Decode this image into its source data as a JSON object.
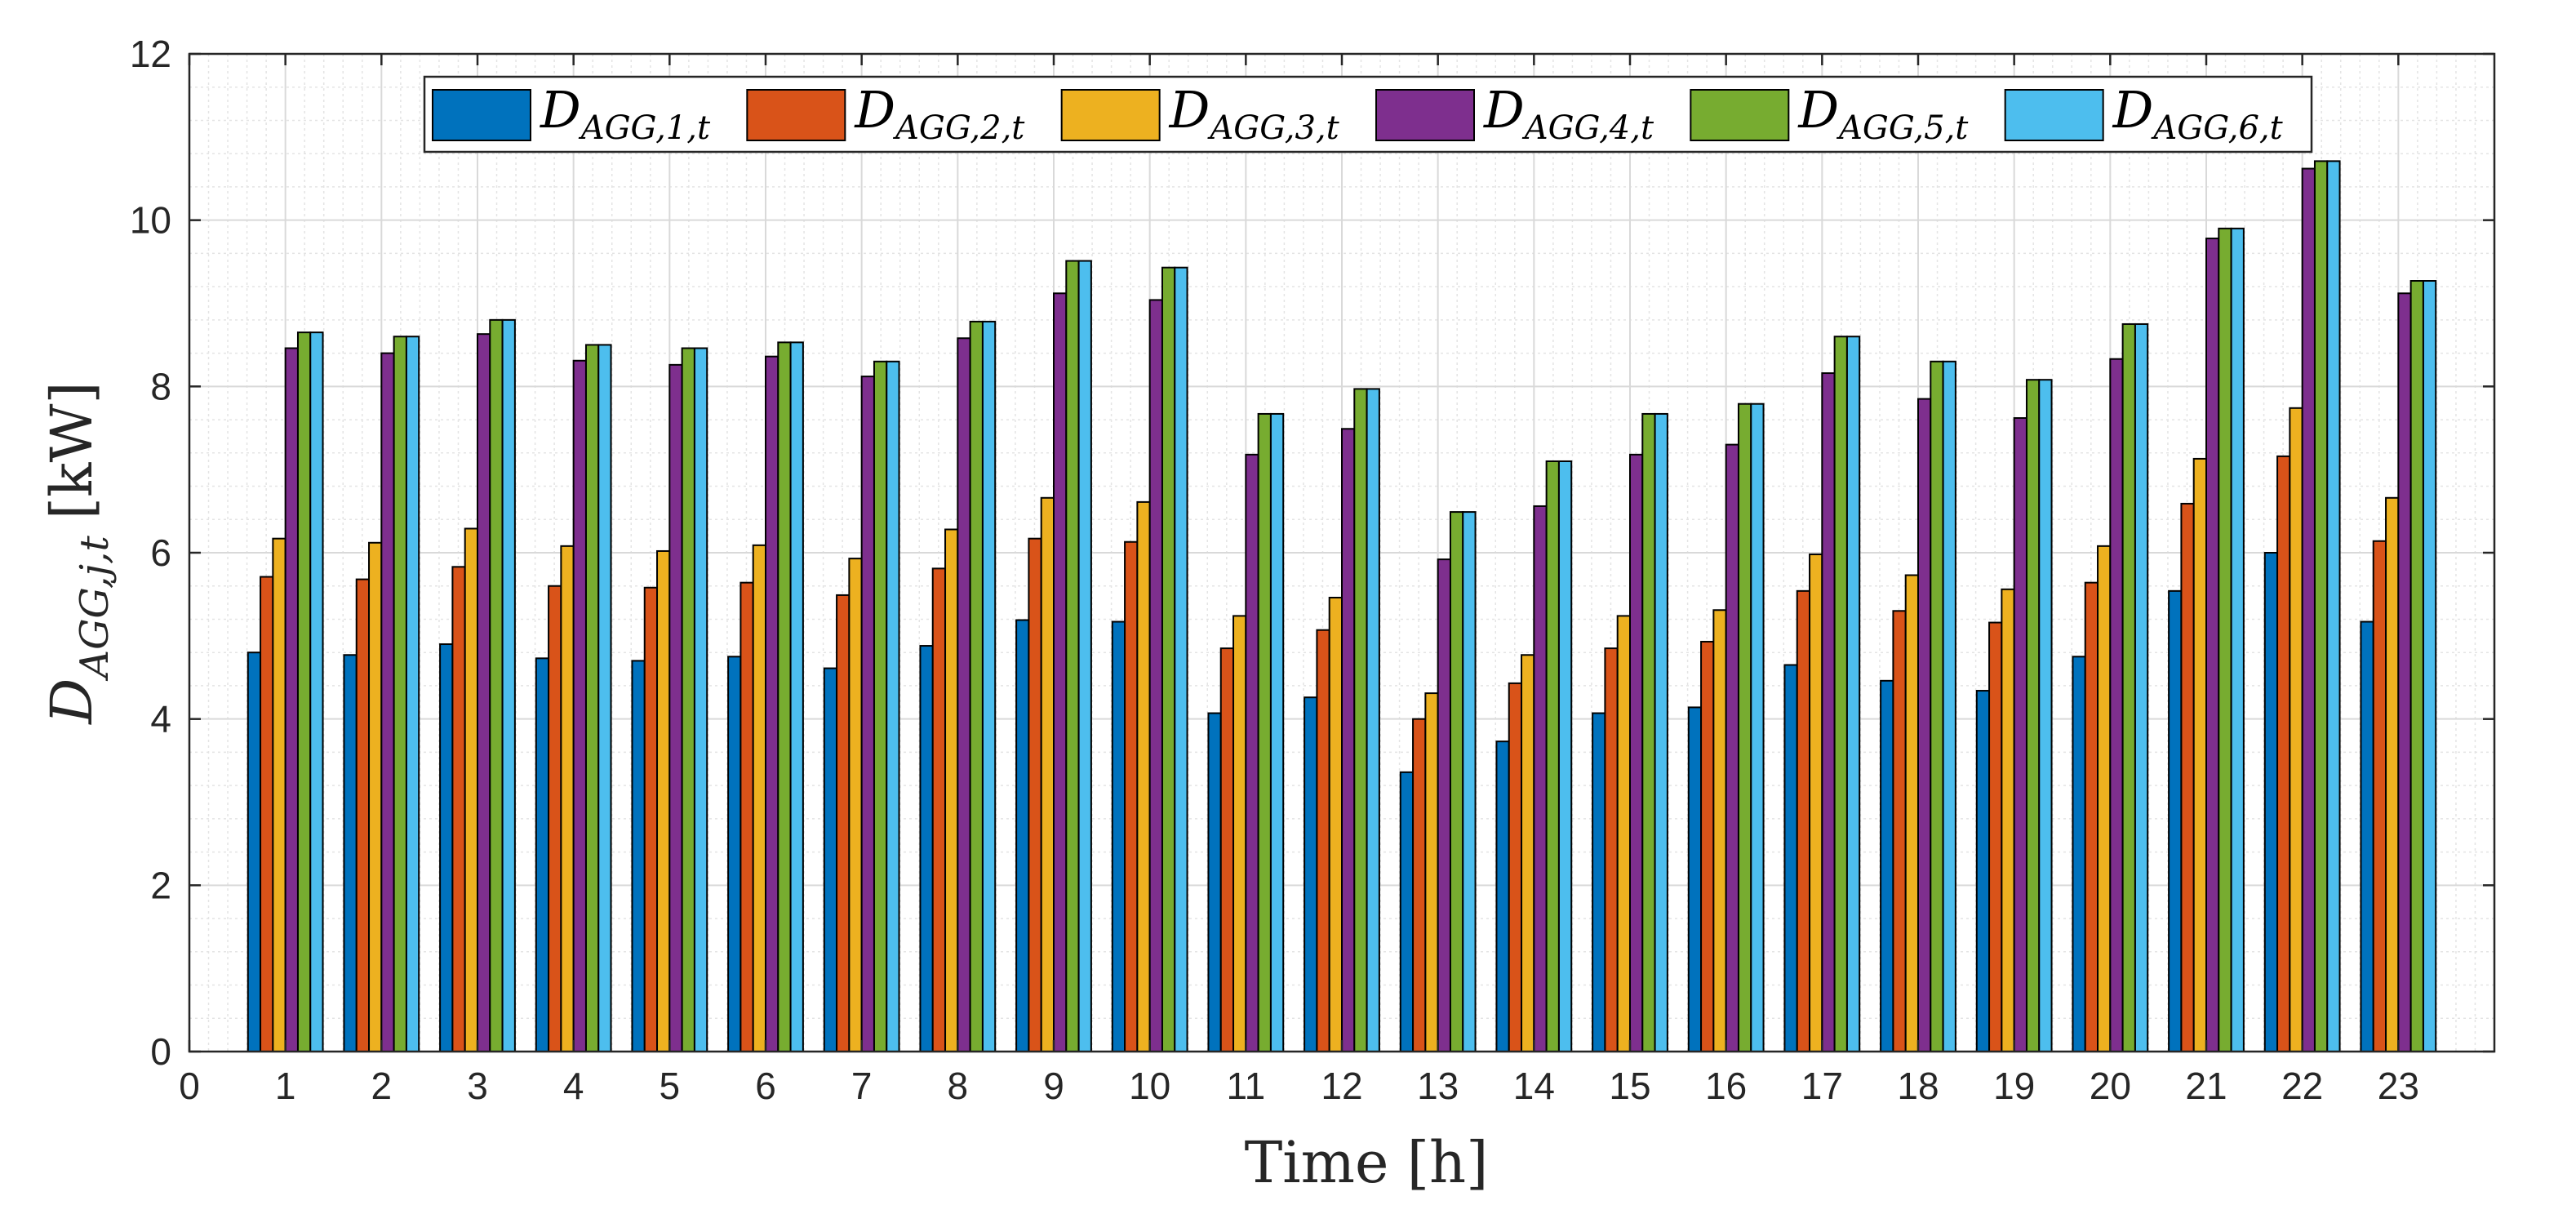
{
  "chart_data": {
    "type": "bar",
    "xlabel": "Time [h]",
    "ylabel": {
      "main": "D",
      "sub": "AGG,j,t",
      "unit": "[kW]"
    },
    "xlim": [
      0,
      24
    ],
    "ylim": [
      0,
      12
    ],
    "x_ticks": [
      0,
      1,
      2,
      3,
      4,
      5,
      6,
      7,
      8,
      9,
      10,
      11,
      12,
      13,
      14,
      15,
      16,
      17,
      18,
      19,
      20,
      21,
      22,
      23
    ],
    "y_ticks": [
      0,
      2,
      4,
      6,
      8,
      10,
      12
    ],
    "grid": true,
    "minor_grid": true,
    "legend_position": "top",
    "categories": [
      1,
      2,
      3,
      4,
      5,
      6,
      7,
      8,
      9,
      10,
      11,
      12,
      13,
      14,
      15,
      16,
      17,
      18,
      19,
      20,
      21,
      22,
      23
    ],
    "series": [
      {
        "name": "D_AGG,1,t",
        "base": "D",
        "sub": "AGG,1,t",
        "color": "#0072BD",
        "values": [
          4.8,
          4.77,
          4.9,
          4.73,
          4.7,
          4.75,
          4.61,
          4.88,
          5.19,
          5.17,
          4.07,
          4.26,
          3.36,
          3.73,
          4.07,
          4.14,
          4.65,
          4.46,
          4.34,
          4.75,
          5.54,
          6.0,
          5.17
        ]
      },
      {
        "name": "D_AGG,2,t",
        "base": "D",
        "sub": "AGG,2,t",
        "color": "#D95319",
        "values": [
          5.71,
          5.68,
          5.83,
          5.6,
          5.58,
          5.64,
          5.49,
          5.81,
          6.17,
          6.13,
          4.85,
          5.07,
          4.0,
          4.43,
          4.85,
          4.93,
          5.54,
          5.3,
          5.16,
          5.64,
          6.59,
          7.16,
          6.14
        ]
      },
      {
        "name": "D_AGG,3,t",
        "base": "D",
        "sub": "AGG,3,t",
        "color": "#EDB120",
        "values": [
          6.17,
          6.12,
          6.29,
          6.08,
          6.02,
          6.09,
          5.93,
          6.28,
          6.66,
          6.61,
          5.24,
          5.46,
          4.31,
          4.77,
          5.24,
          5.31,
          5.98,
          5.73,
          5.56,
          6.08,
          7.13,
          7.74,
          6.66
        ]
      },
      {
        "name": "D_AGG,4,t",
        "base": "D",
        "sub": "AGG,4,t",
        "color": "#7E2F8E",
        "values": [
          8.46,
          8.4,
          8.63,
          8.31,
          8.26,
          8.36,
          8.12,
          8.58,
          9.12,
          9.04,
          7.18,
          7.49,
          5.92,
          6.56,
          7.18,
          7.3,
          8.16,
          7.85,
          7.62,
          8.33,
          9.78,
          10.62,
          9.12
        ]
      },
      {
        "name": "D_AGG,5,t",
        "base": "D",
        "sub": "AGG,5,t",
        "color": "#77AC30",
        "values": [
          8.65,
          8.6,
          8.8,
          8.5,
          8.46,
          8.53,
          8.3,
          8.78,
          9.51,
          9.43,
          7.67,
          7.97,
          6.49,
          7.1,
          7.67,
          7.79,
          8.6,
          8.3,
          8.08,
          8.75,
          9.9,
          10.71,
          9.27
        ]
      },
      {
        "name": "D_AGG,6,t",
        "base": "D",
        "sub": "AGG,6,t",
        "color": "#4DBEEE",
        "values": [
          8.65,
          8.6,
          8.8,
          8.5,
          8.46,
          8.53,
          8.3,
          8.78,
          9.51,
          9.43,
          7.67,
          7.97,
          6.49,
          7.1,
          7.67,
          7.79,
          8.6,
          8.3,
          8.08,
          8.75,
          9.9,
          10.71,
          9.27
        ]
      }
    ]
  }
}
